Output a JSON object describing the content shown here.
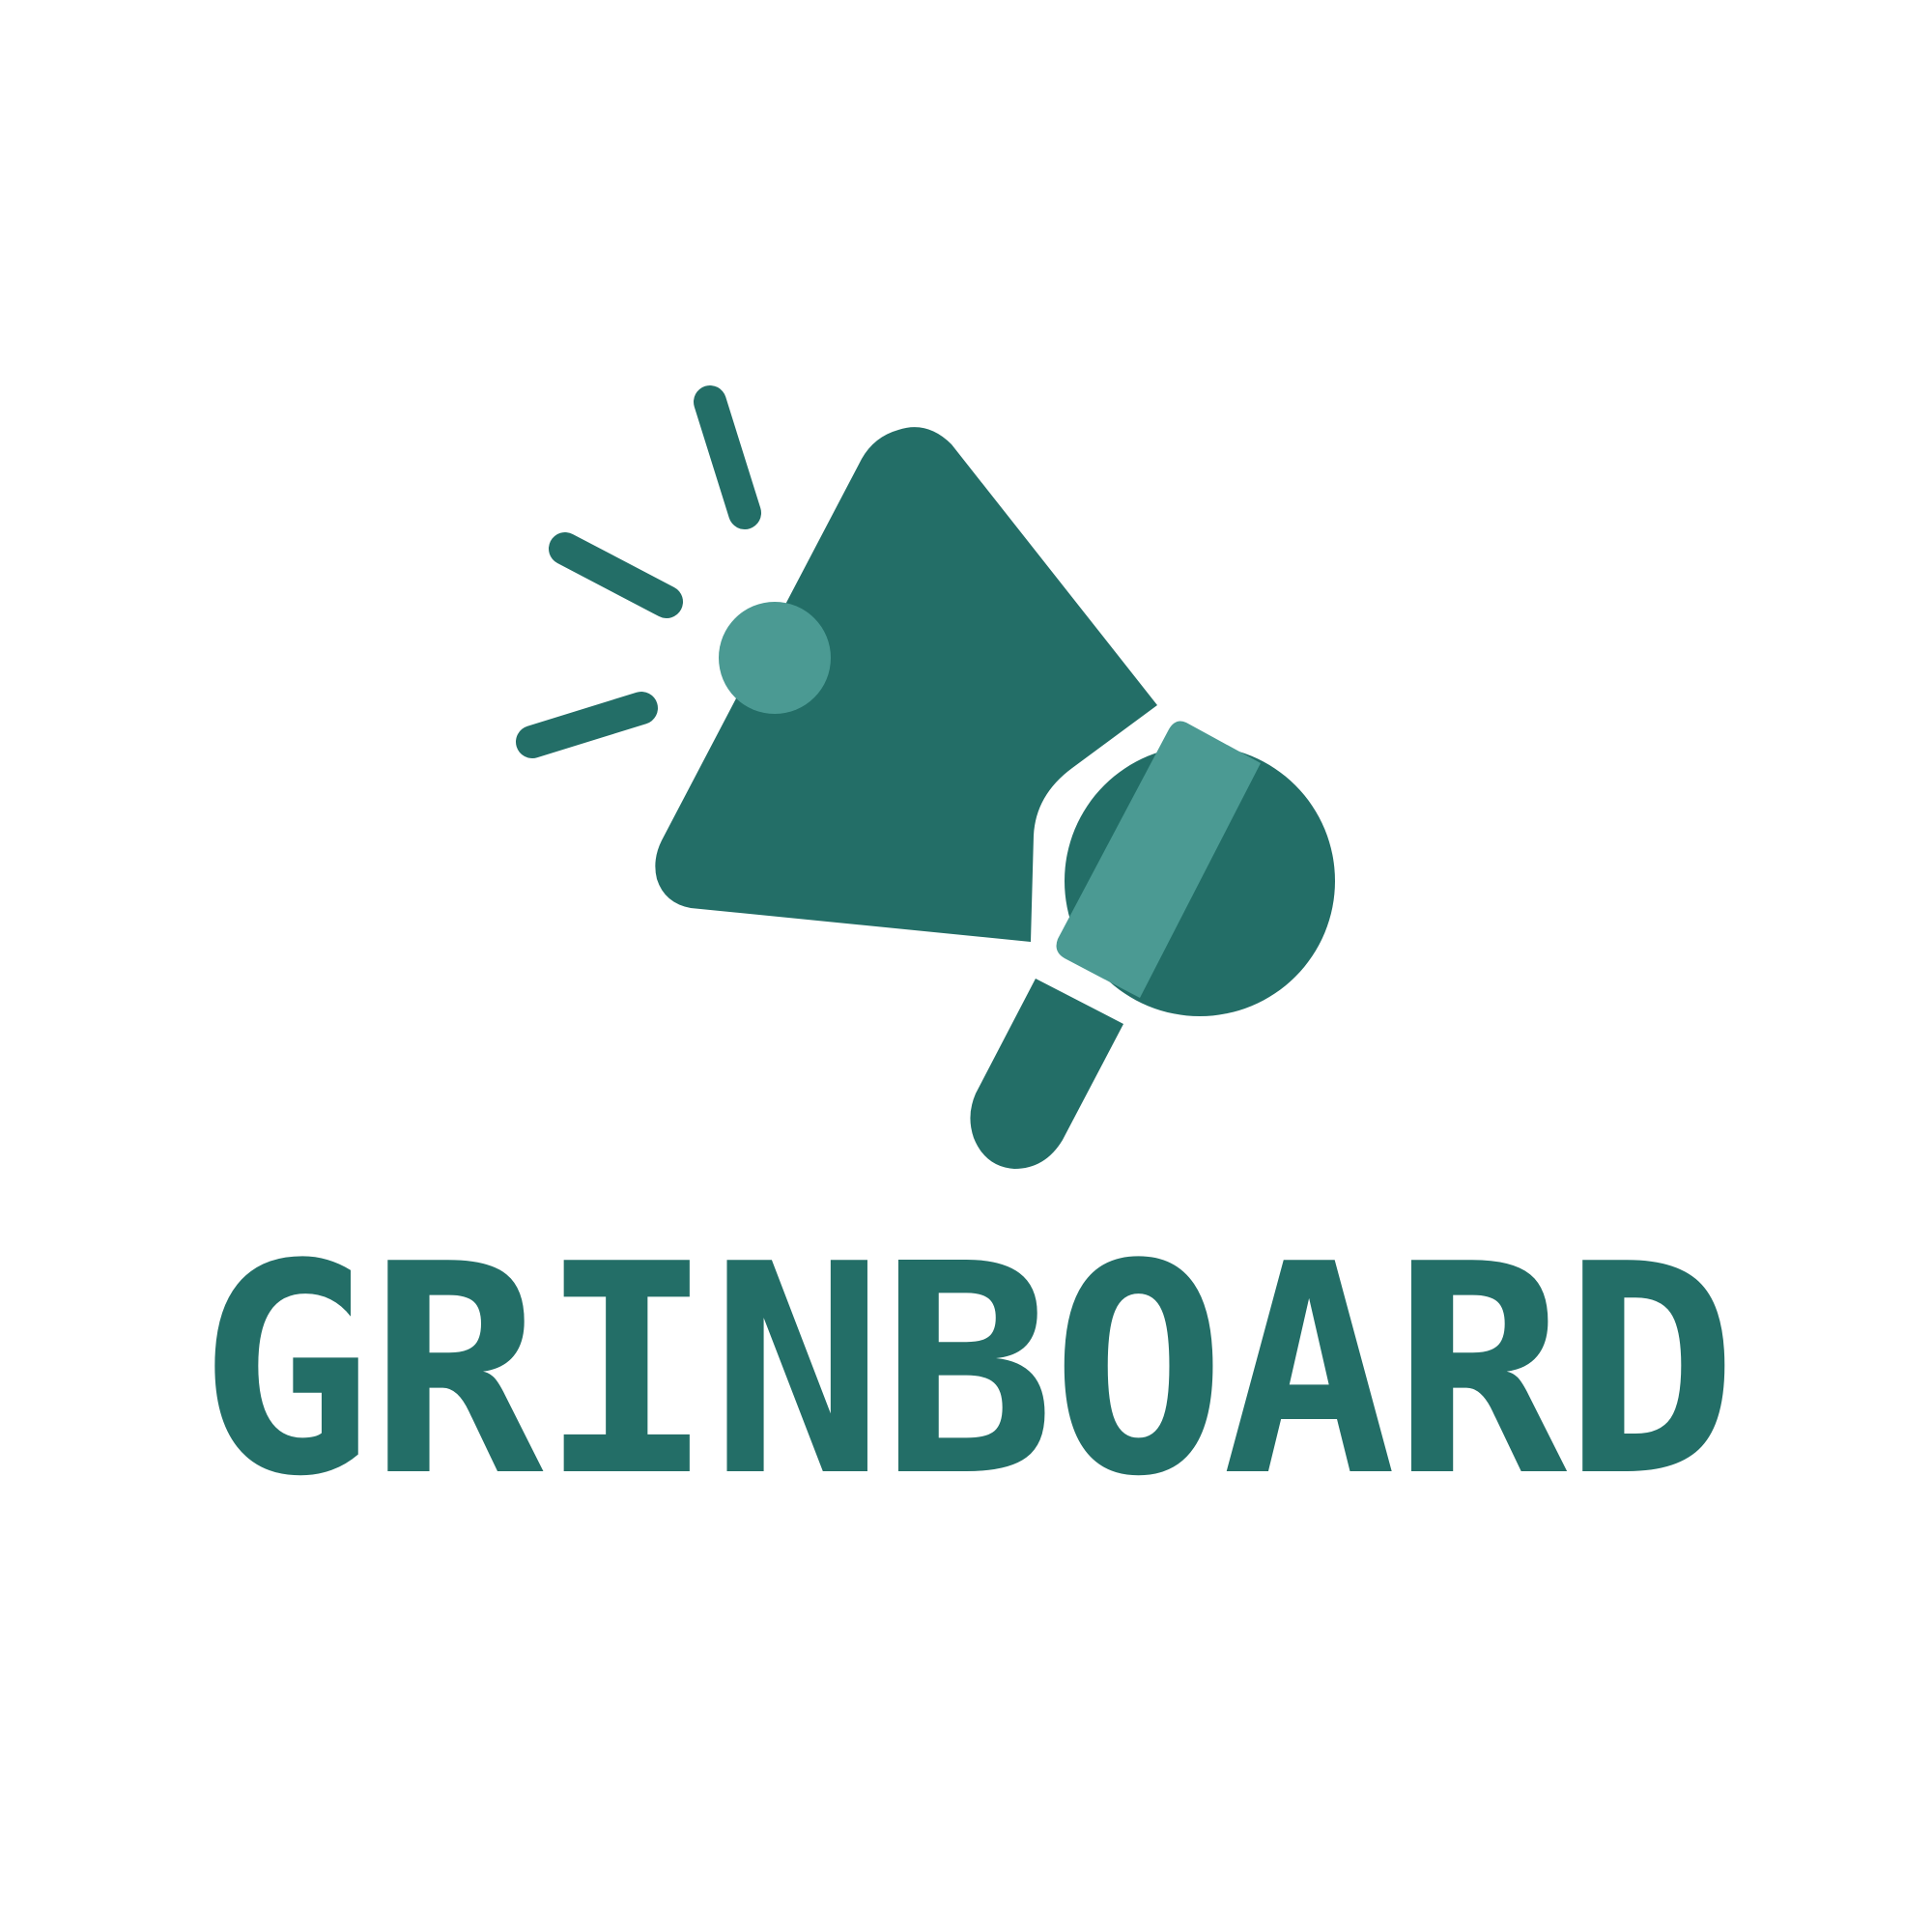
{
  "brand": {
    "name": "GRINBOARD",
    "colors": {
      "primary": "#236e67",
      "accent": "#4b9a93",
      "background": "#ffffff"
    },
    "icon": "megaphone-icon"
  }
}
